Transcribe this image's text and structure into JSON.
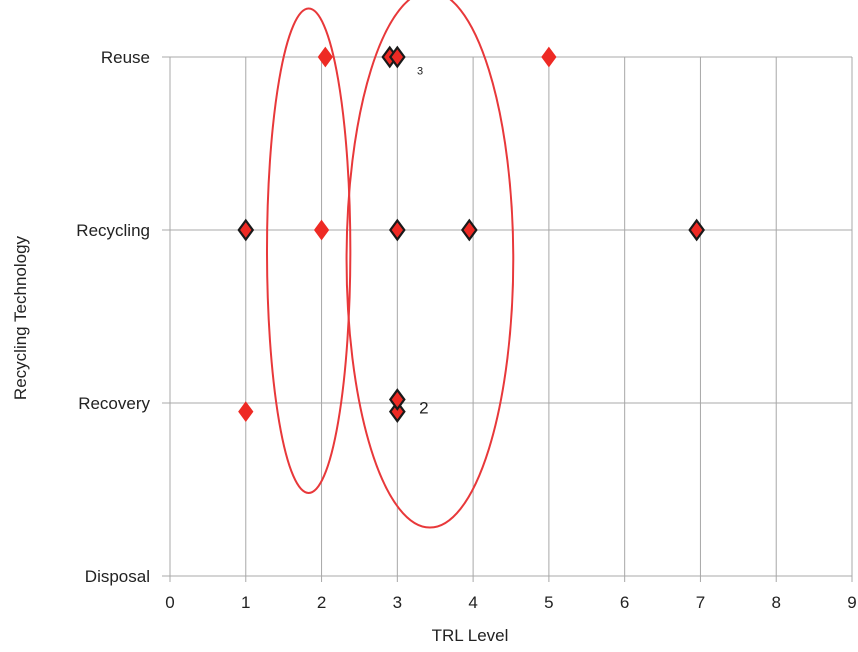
{
  "chart_data": {
    "type": "scatter",
    "xlabel": "TRL Level",
    "ylabel": "Recycling Technology",
    "xlim": [
      0,
      9
    ],
    "x_ticks": [
      "0",
      "1",
      "2",
      "3",
      "4",
      "5",
      "6",
      "7",
      "8",
      "9"
    ],
    "y_categories": [
      "Disposal",
      "Recovery",
      "Recycling",
      "Reuse"
    ],
    "grid": true,
    "colors": {
      "marker_fill": "#ee2a24",
      "marker_outline": "#1a1a1a",
      "ellipse": "#e8383a",
      "grid": "#a8a8a8"
    },
    "points": [
      {
        "x": 2.05,
        "y": "Reuse",
        "outline": false
      },
      {
        "x": 2.9,
        "y": "Reuse",
        "outline": true
      },
      {
        "x": 3.0,
        "y": "Reuse",
        "outline": true
      },
      {
        "x": 5.0,
        "y": "Reuse",
        "outline": false
      },
      {
        "x": 1.0,
        "y": "Recycling",
        "outline": true
      },
      {
        "x": 2.0,
        "y": "Recycling",
        "outline": false
      },
      {
        "x": 3.0,
        "y": "Recycling",
        "outline": true
      },
      {
        "x": 3.95,
        "y": "Recycling",
        "outline": true
      },
      {
        "x": 6.95,
        "y": "Recycling",
        "outline": true
      },
      {
        "x": 1.0,
        "y": "Recovery",
        "offset": -0.05,
        "outline": false
      },
      {
        "x": 3.0,
        "y": "Recovery",
        "offset": -0.05,
        "outline": true
      },
      {
        "x": 3.0,
        "y": "Recovery",
        "offset": 0.02,
        "outline": true
      }
    ],
    "point_labels": [
      {
        "text": "3",
        "x": 3.3,
        "y": "Reuse",
        "offset": -0.1,
        "small": true
      },
      {
        "text": "2",
        "x": 3.35,
        "y": "Recovery",
        "offset": -0.06,
        "small": false
      }
    ],
    "ellipses": [
      {
        "cx": 1.83,
        "cy": 1.88,
        "rx": 0.55,
        "ry": 1.4
      },
      {
        "cx": 3.43,
        "cy": 1.83,
        "rx": 1.1,
        "ry": 1.55
      }
    ]
  }
}
